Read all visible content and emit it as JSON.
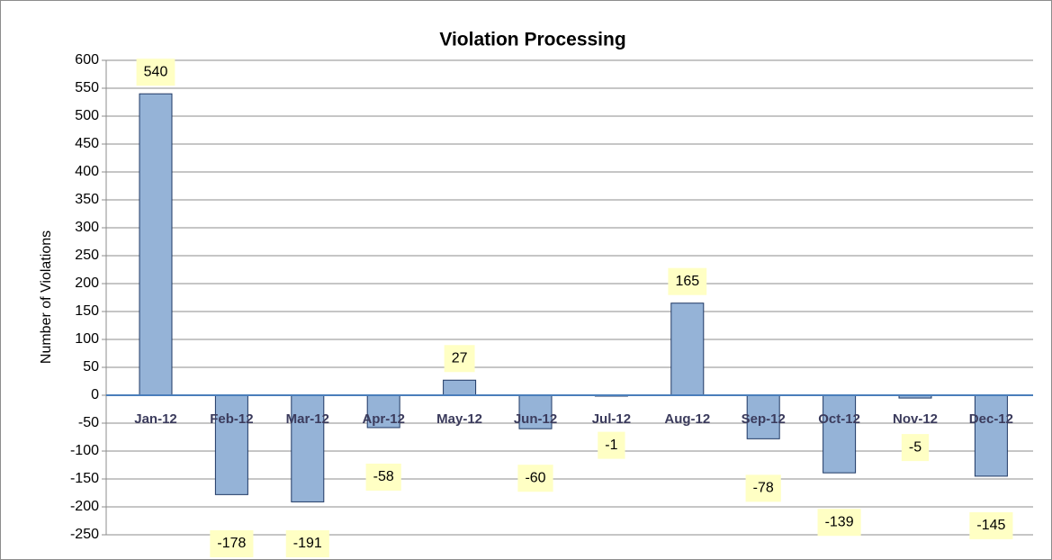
{
  "chart_data": {
    "type": "bar",
    "title": "Violation Processing",
    "y_label": "Number of Violations",
    "categories": [
      "Jan-12",
      "Feb-12",
      "Mar-12",
      "Apr-12",
      "May-12",
      "Jun-12",
      "Jul-12",
      "Aug-12",
      "Sep-12",
      "Oct-12",
      "Nov-12",
      "Dec-12"
    ],
    "values": [
      540,
      -178,
      -191,
      -58,
      27,
      -60,
      -1,
      165,
      -78,
      -139,
      -5,
      -145
    ],
    "color": "#95b3d7",
    "ylim": [
      -250,
      600
    ],
    "yticks": [
      -250,
      -200,
      -150,
      -100,
      -50,
      0,
      50,
      100,
      150,
      200,
      250,
      300,
      350,
      400,
      450,
      500,
      550,
      600
    ],
    "grid": true
  }
}
